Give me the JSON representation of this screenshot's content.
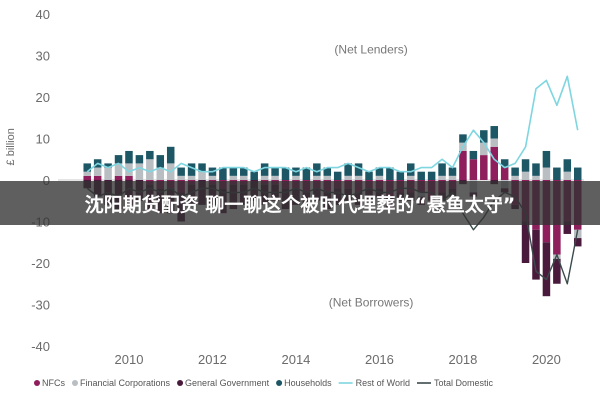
{
  "banner": {
    "text": "沈阳期货配资 聊一聊这个被时代埋葬的“悬鱼太守”"
  },
  "colors": {
    "nfcs": "#8e1f5c",
    "financial": "#b9bec2",
    "government": "#4a1a3c",
    "households": "#1d5766",
    "rest_of_world": "#7fd6e0",
    "total_domestic": "#3b4a4c",
    "zero_line": "#c9c9c9"
  },
  "chart_data": {
    "type": "bar",
    "stacked": true,
    "title": "",
    "xlabel": "",
    "ylabel": "£ billion",
    "ylim": [
      -40,
      40
    ],
    "yticks": [
      -40,
      -30,
      -20,
      -10,
      0,
      10,
      20,
      30,
      40
    ],
    "xlim": [
      2008.3,
      2020.9
    ],
    "xticks": [
      2010,
      2012,
      2014,
      2016,
      2018,
      2020
    ],
    "grid": false,
    "legend_position": "bottom",
    "annotations": [
      {
        "text": "(Net Lenders)",
        "x": 2015.8,
        "y": 30.5
      },
      {
        "text": "(Net Borrowers)",
        "x": 2015.8,
        "y": -30.5
      }
    ],
    "x": [
      2009.0,
      2009.25,
      2009.5,
      2009.75,
      2010.0,
      2010.25,
      2010.5,
      2010.75,
      2011.0,
      2011.25,
      2011.5,
      2011.75,
      2012.0,
      2012.25,
      2012.5,
      2012.75,
      2013.0,
      2013.25,
      2013.5,
      2013.75,
      2014.0,
      2014.25,
      2014.5,
      2014.75,
      2015.0,
      2015.25,
      2015.5,
      2015.75,
      2016.0,
      2016.25,
      2016.5,
      2016.75,
      2017.0,
      2017.25,
      2017.5,
      2017.75,
      2018.0,
      2018.25,
      2018.5,
      2018.75,
      2019.0,
      2019.25,
      2019.5,
      2019.75,
      2020.0,
      2020.25,
      2020.5,
      2020.75
    ],
    "series": [
      {
        "name": "NFCs",
        "kind": "bar",
        "color": "#8e1f5c",
        "values": [
          1,
          1,
          0,
          1,
          1,
          0,
          -1,
          -2,
          -2,
          -3,
          -1,
          0,
          -1,
          -2,
          -1,
          -1,
          0,
          -1,
          -1,
          -2,
          -2,
          -3,
          -2,
          -3,
          -2,
          -2,
          -3,
          -2,
          -2,
          -4,
          -3,
          -3,
          -3,
          -4,
          -3,
          -2,
          7,
          5,
          6,
          8,
          3,
          -6,
          -10,
          -12,
          -15,
          -18,
          -10,
          -12
        ]
      },
      {
        "name": "Financial Corporations",
        "kind": "bar",
        "color": "#b9bec2",
        "values": [
          1,
          2,
          3,
          3,
          3,
          4,
          5,
          3,
          4,
          1,
          1,
          2,
          1,
          0,
          1,
          1,
          0,
          1,
          1,
          0,
          1,
          0,
          1,
          1,
          0,
          1,
          1,
          0,
          1,
          0,
          0,
          1,
          -1,
          0,
          1,
          1,
          2,
          -3,
          3,
          2,
          -2,
          1,
          2,
          1,
          3,
          -1,
          2,
          -2
        ]
      },
      {
        "name": "General Government",
        "kind": "bar",
        "color": "#4a1a3c",
        "values": [
          -2,
          -4,
          -6,
          -7,
          -6,
          -5,
          -6,
          -6,
          -6,
          -7,
          -5,
          -6,
          -5,
          -6,
          -6,
          -5,
          -5,
          -5,
          -4,
          -5,
          -4,
          -4,
          -3,
          -4,
          -4,
          -3,
          -3,
          -3,
          -2,
          -3,
          -2,
          -2,
          -2,
          -1,
          -2,
          -2,
          -1,
          -1,
          0,
          -1,
          -1,
          -1,
          -10,
          -12,
          -13,
          -6,
          -3,
          -2
        ]
      },
      {
        "name": "Households",
        "kind": "bar",
        "color": "#1d5766",
        "values": [
          2,
          2,
          1,
          2,
          3,
          2,
          2,
          3,
          4,
          2,
          3,
          2,
          2,
          3,
          2,
          2,
          2,
          3,
          2,
          3,
          2,
          3,
          3,
          2,
          2,
          3,
          3,
          2,
          2,
          3,
          2,
          3,
          2,
          2,
          3,
          2,
          2,
          2,
          3,
          3,
          2,
          2,
          3,
          3,
          4,
          3,
          3,
          3
        ]
      },
      {
        "name": "Rest of World",
        "kind": "line",
        "color": "#7fd6e0",
        "values": [
          2,
          4,
          3,
          4,
          2,
          3,
          2,
          3,
          2,
          4,
          3,
          2,
          2,
          3,
          3,
          3,
          2,
          3,
          3,
          3,
          2,
          3,
          2,
          3,
          3,
          4,
          3,
          2,
          3,
          3,
          2,
          2,
          3,
          3,
          5,
          3,
          8,
          12,
          9,
          5,
          3,
          4,
          8,
          22,
          24,
          18,
          25,
          12
        ]
      },
      {
        "name": "Total Domestic",
        "kind": "line",
        "color": "#3b4a4c",
        "values": [
          -2,
          -4,
          -3,
          -4,
          -2,
          -3,
          -2,
          -3,
          -2,
          -4,
          -3,
          -2,
          -2,
          -3,
          -3,
          -3,
          -2,
          -3,
          -3,
          -3,
          -2,
          -3,
          -2,
          -3,
          -3,
          -4,
          -3,
          -2,
          -3,
          -3,
          -2,
          -2,
          -3,
          -3,
          -5,
          -3,
          -8,
          -12,
          -9,
          -5,
          -3,
          -4,
          -8,
          -22,
          -24,
          -18,
          -25,
          -12
        ]
      }
    ]
  }
}
